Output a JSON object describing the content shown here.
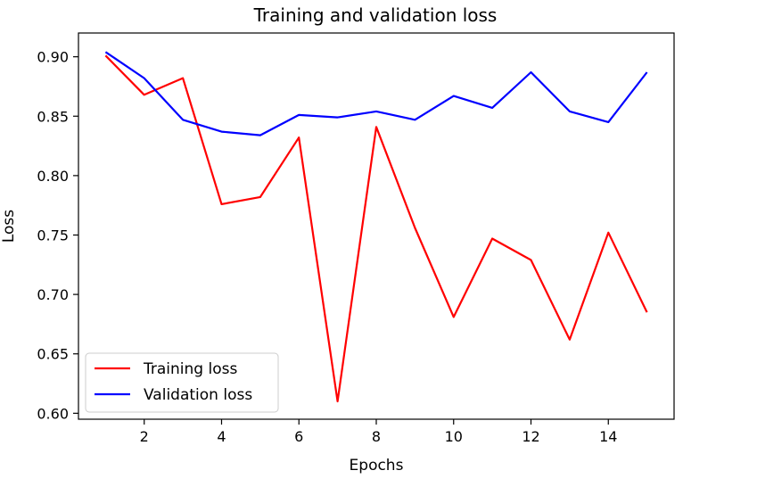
{
  "chart_data": {
    "type": "line",
    "title": "Training and validation loss",
    "xlabel": "Epochs",
    "ylabel": "Loss",
    "x": [
      1,
      2,
      3,
      4,
      5,
      6,
      7,
      8,
      9,
      10,
      11,
      12,
      13,
      14,
      15
    ],
    "xlim": [
      0.3,
      15.7
    ],
    "ylim": [
      0.595,
      0.92
    ],
    "xticks": [
      2,
      4,
      6,
      8,
      10,
      12,
      14
    ],
    "yticks": [
      0.6,
      0.65,
      0.7,
      0.75,
      0.8,
      0.85,
      0.9
    ],
    "ytick_labels": [
      "0.60",
      "0.65",
      "0.70",
      "0.75",
      "0.80",
      "0.85",
      "0.90"
    ],
    "legend_position": "lower-left",
    "series": [
      {
        "name": "Training loss",
        "color": "#ff0000",
        "values": [
          0.901,
          0.868,
          0.882,
          0.776,
          0.782,
          0.832,
          0.61,
          0.841,
          0.756,
          0.681,
          0.747,
          0.729,
          0.662,
          0.752,
          0.685
        ]
      },
      {
        "name": "Validation loss",
        "color": "#0000ff",
        "values": [
          0.904,
          0.882,
          0.847,
          0.837,
          0.834,
          0.851,
          0.849,
          0.854,
          0.847,
          0.867,
          0.857,
          0.887,
          0.854,
          0.845,
          0.887
        ]
      }
    ]
  }
}
